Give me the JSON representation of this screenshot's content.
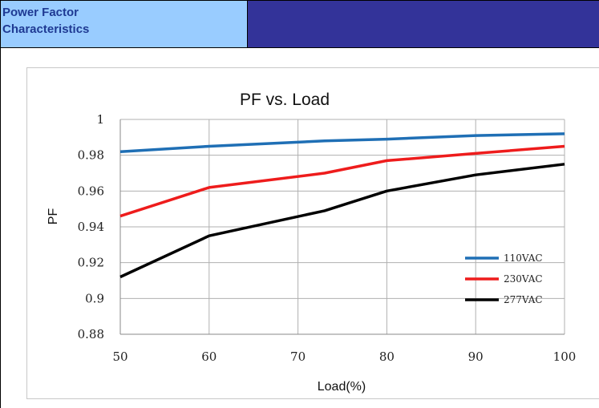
{
  "header": {
    "title_line1": "Power Factor",
    "title_line2": "Characteristics",
    "left_bg": "#99ccff",
    "right_bg": "#333399",
    "title_color": "#1f3a93"
  },
  "chart_data": {
    "type": "line",
    "title": "PF vs. Load",
    "xlabel": "Load(%)",
    "ylabel": "PF",
    "xlim": [
      50,
      100
    ],
    "ylim": [
      0.88,
      1
    ],
    "x_ticks": [
      "50",
      "60",
      "70",
      "80",
      "90",
      "100"
    ],
    "y_ticks": [
      "0.88",
      "0.9",
      "0.92",
      "0.94",
      "0.96",
      "0.98",
      "1"
    ],
    "grid": true,
    "legend_position": "right",
    "series": [
      {
        "name": "110VAC",
        "color": "#1f6fb5",
        "x": [
          50,
          60,
          73,
          80,
          90,
          100
        ],
        "values": [
          0.982,
          0.985,
          0.988,
          0.989,
          0.991,
          0.992
        ]
      },
      {
        "name": "230VAC",
        "color": "#ee1c1c",
        "x": [
          50,
          60,
          73,
          80,
          90,
          100
        ],
        "values": [
          0.946,
          0.962,
          0.97,
          0.977,
          0.981,
          0.985
        ]
      },
      {
        "name": "277VAC",
        "color": "#000000",
        "x": [
          50,
          60,
          73,
          80,
          90,
          100
        ],
        "values": [
          0.912,
          0.935,
          0.949,
          0.96,
          0.969,
          0.975
        ]
      }
    ]
  }
}
